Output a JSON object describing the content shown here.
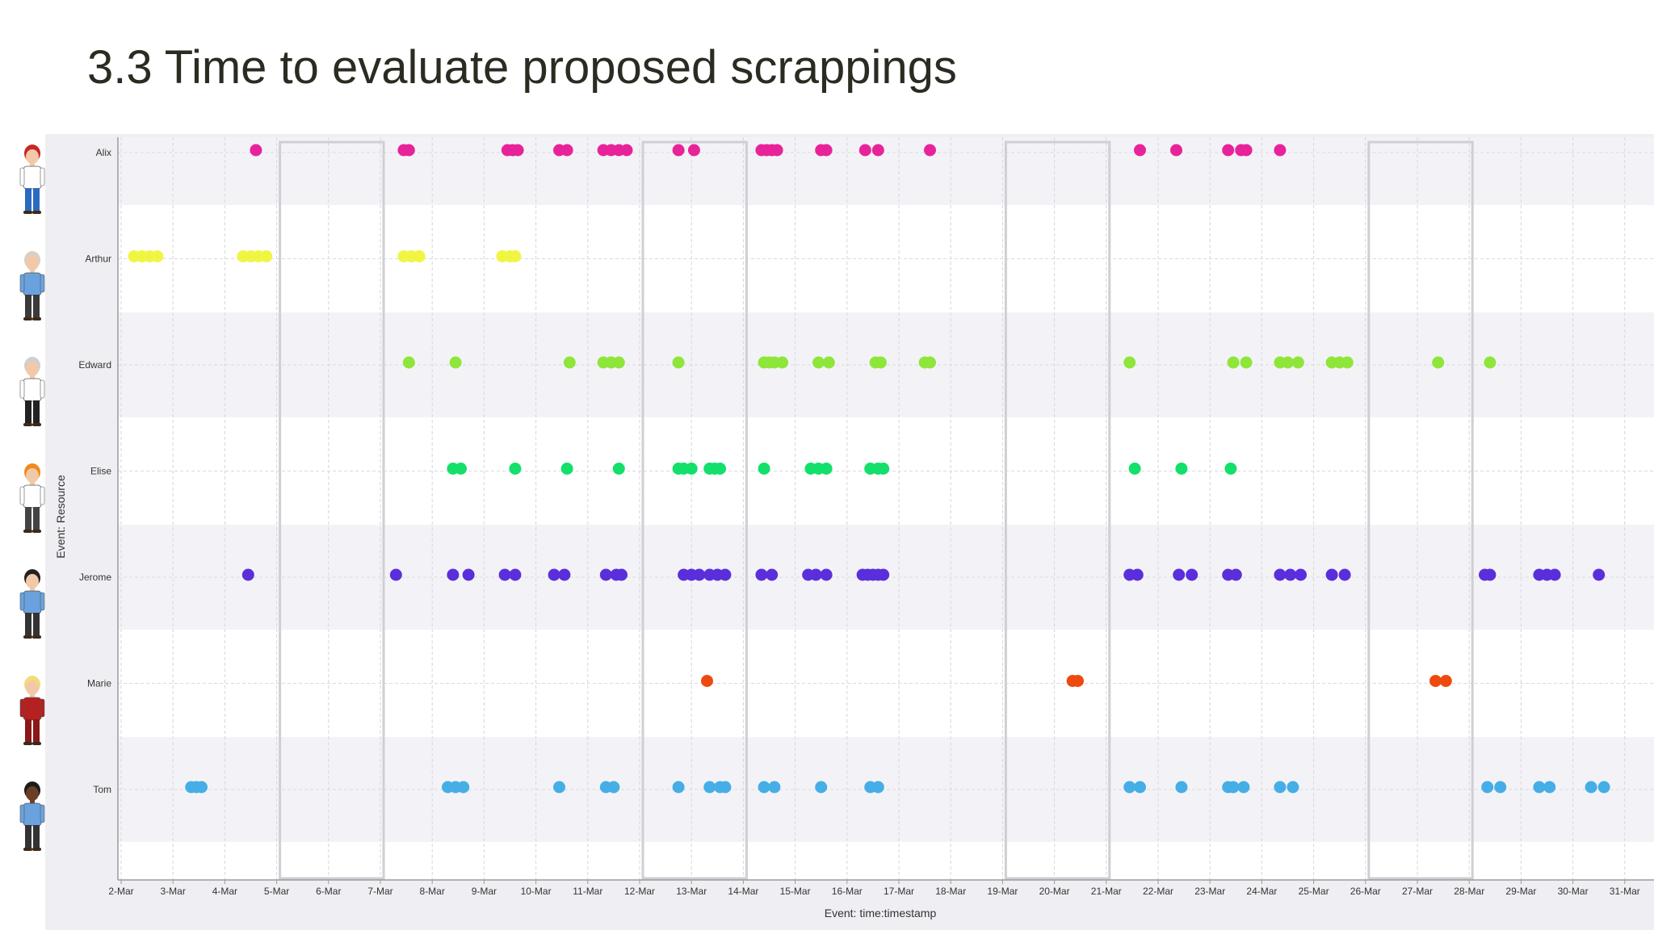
{
  "slide": {
    "title": "3.3 Time to evaluate proposed scrappings"
  },
  "chart_data": {
    "type": "scatter",
    "title": "",
    "xlabel": "Event: time:timestamp",
    "ylabel": "Event: Resource",
    "x_tick_labels": [
      "2-Mar",
      "3-Mar",
      "4-Mar",
      "5-Mar",
      "6-Mar",
      "7-Mar",
      "8-Mar",
      "9-Mar",
      "10-Mar",
      "11-Mar",
      "12-Mar",
      "13-Mar",
      "14-Mar",
      "15-Mar",
      "16-Mar",
      "17-Mar",
      "18-Mar",
      "19-Mar",
      "20-Mar",
      "21-Mar",
      "22-Mar",
      "23-Mar",
      "24-Mar",
      "25-Mar",
      "26-Mar",
      "27-Mar",
      "28-Mar",
      "29-Mar",
      "30-Mar",
      "31-Mar"
    ],
    "xlim": [
      "2-Mar",
      "31-Mar"
    ],
    "categories": [
      "Alix",
      "Arthur",
      "Edward",
      "Elise",
      "Jerome",
      "Marie",
      "Tom"
    ],
    "grid": true,
    "legend": "none",
    "highlighted_ranges": [
      [
        "5-Mar",
        "7-Mar"
      ],
      [
        "12-Mar",
        "14-Mar"
      ],
      [
        "19-Mar",
        "21-Mar"
      ],
      [
        "26-Mar",
        "28-Mar"
      ]
    ],
    "series": [
      {
        "category": "Alix",
        "color": "#e8239a",
        "x": [
          4.6,
          7.45,
          7.55,
          9.45,
          9.55,
          9.65,
          10.45,
          10.6,
          11.3,
          11.45,
          11.6,
          11.75,
          12.75,
          13.05,
          14.35,
          14.45,
          14.55,
          14.65,
          15.5,
          15.6,
          16.35,
          16.6,
          17.6,
          21.65,
          22.35,
          23.35,
          23.6,
          23.7,
          24.35
        ]
      },
      {
        "category": "Arthur",
        "color": "#f0f542",
        "x": [
          2.25,
          2.4,
          2.55,
          2.7,
          4.35,
          4.5,
          4.65,
          4.8,
          7.45,
          7.6,
          7.75,
          9.35,
          9.5,
          9.6
        ]
      },
      {
        "category": "Edward",
        "color": "#8ee63a",
        "x": [
          7.55,
          8.45,
          10.65,
          11.3,
          11.45,
          11.6,
          12.75,
          14.4,
          14.5,
          14.6,
          14.75,
          15.45,
          15.65,
          16.55,
          16.65,
          17.5,
          17.6,
          21.45,
          23.45,
          23.7,
          24.35,
          24.5,
          24.7,
          25.35,
          25.5,
          25.65,
          27.4,
          28.4
        ]
      },
      {
        "category": "Elise",
        "color": "#12e06a",
        "x": [
          8.4,
          8.55,
          9.6,
          10.6,
          11.6,
          12.75,
          12.85,
          13.0,
          13.35,
          13.45,
          13.55,
          14.4,
          15.3,
          15.45,
          15.6,
          16.45,
          16.6,
          16.7,
          21.55,
          22.45,
          23.4
        ]
      },
      {
        "category": "Jerome",
        "color": "#5a2fdb",
        "x": [
          4.45,
          7.3,
          8.4,
          8.7,
          9.4,
          9.6,
          10.35,
          10.55,
          11.35,
          11.55,
          11.65,
          12.85,
          13.0,
          13.15,
          13.35,
          13.5,
          13.65,
          14.35,
          14.55,
          15.25,
          15.4,
          15.6,
          16.3,
          16.4,
          16.5,
          16.6,
          16.7,
          21.45,
          21.6,
          22.4,
          22.65,
          23.35,
          23.5,
          24.35,
          24.55,
          24.75,
          25.35,
          25.6,
          28.3,
          28.4,
          29.35,
          29.5,
          29.65,
          30.5
        ]
      },
      {
        "category": "Marie",
        "color": "#ee4a10",
        "x": [
          13.3,
          20.35,
          20.45,
          27.35,
          27.55
        ]
      },
      {
        "category": "Tom",
        "color": "#46aee6",
        "x": [
          3.35,
          3.45,
          3.55,
          8.3,
          8.45,
          8.6,
          10.45,
          11.35,
          11.5,
          12.75,
          13.35,
          13.55,
          13.65,
          14.4,
          14.6,
          15.5,
          16.45,
          16.6,
          21.45,
          21.65,
          22.45,
          23.35,
          23.45,
          23.65,
          24.35,
          24.6,
          28.35,
          28.6,
          29.35,
          29.55,
          30.35,
          30.6
        ]
      }
    ]
  }
}
